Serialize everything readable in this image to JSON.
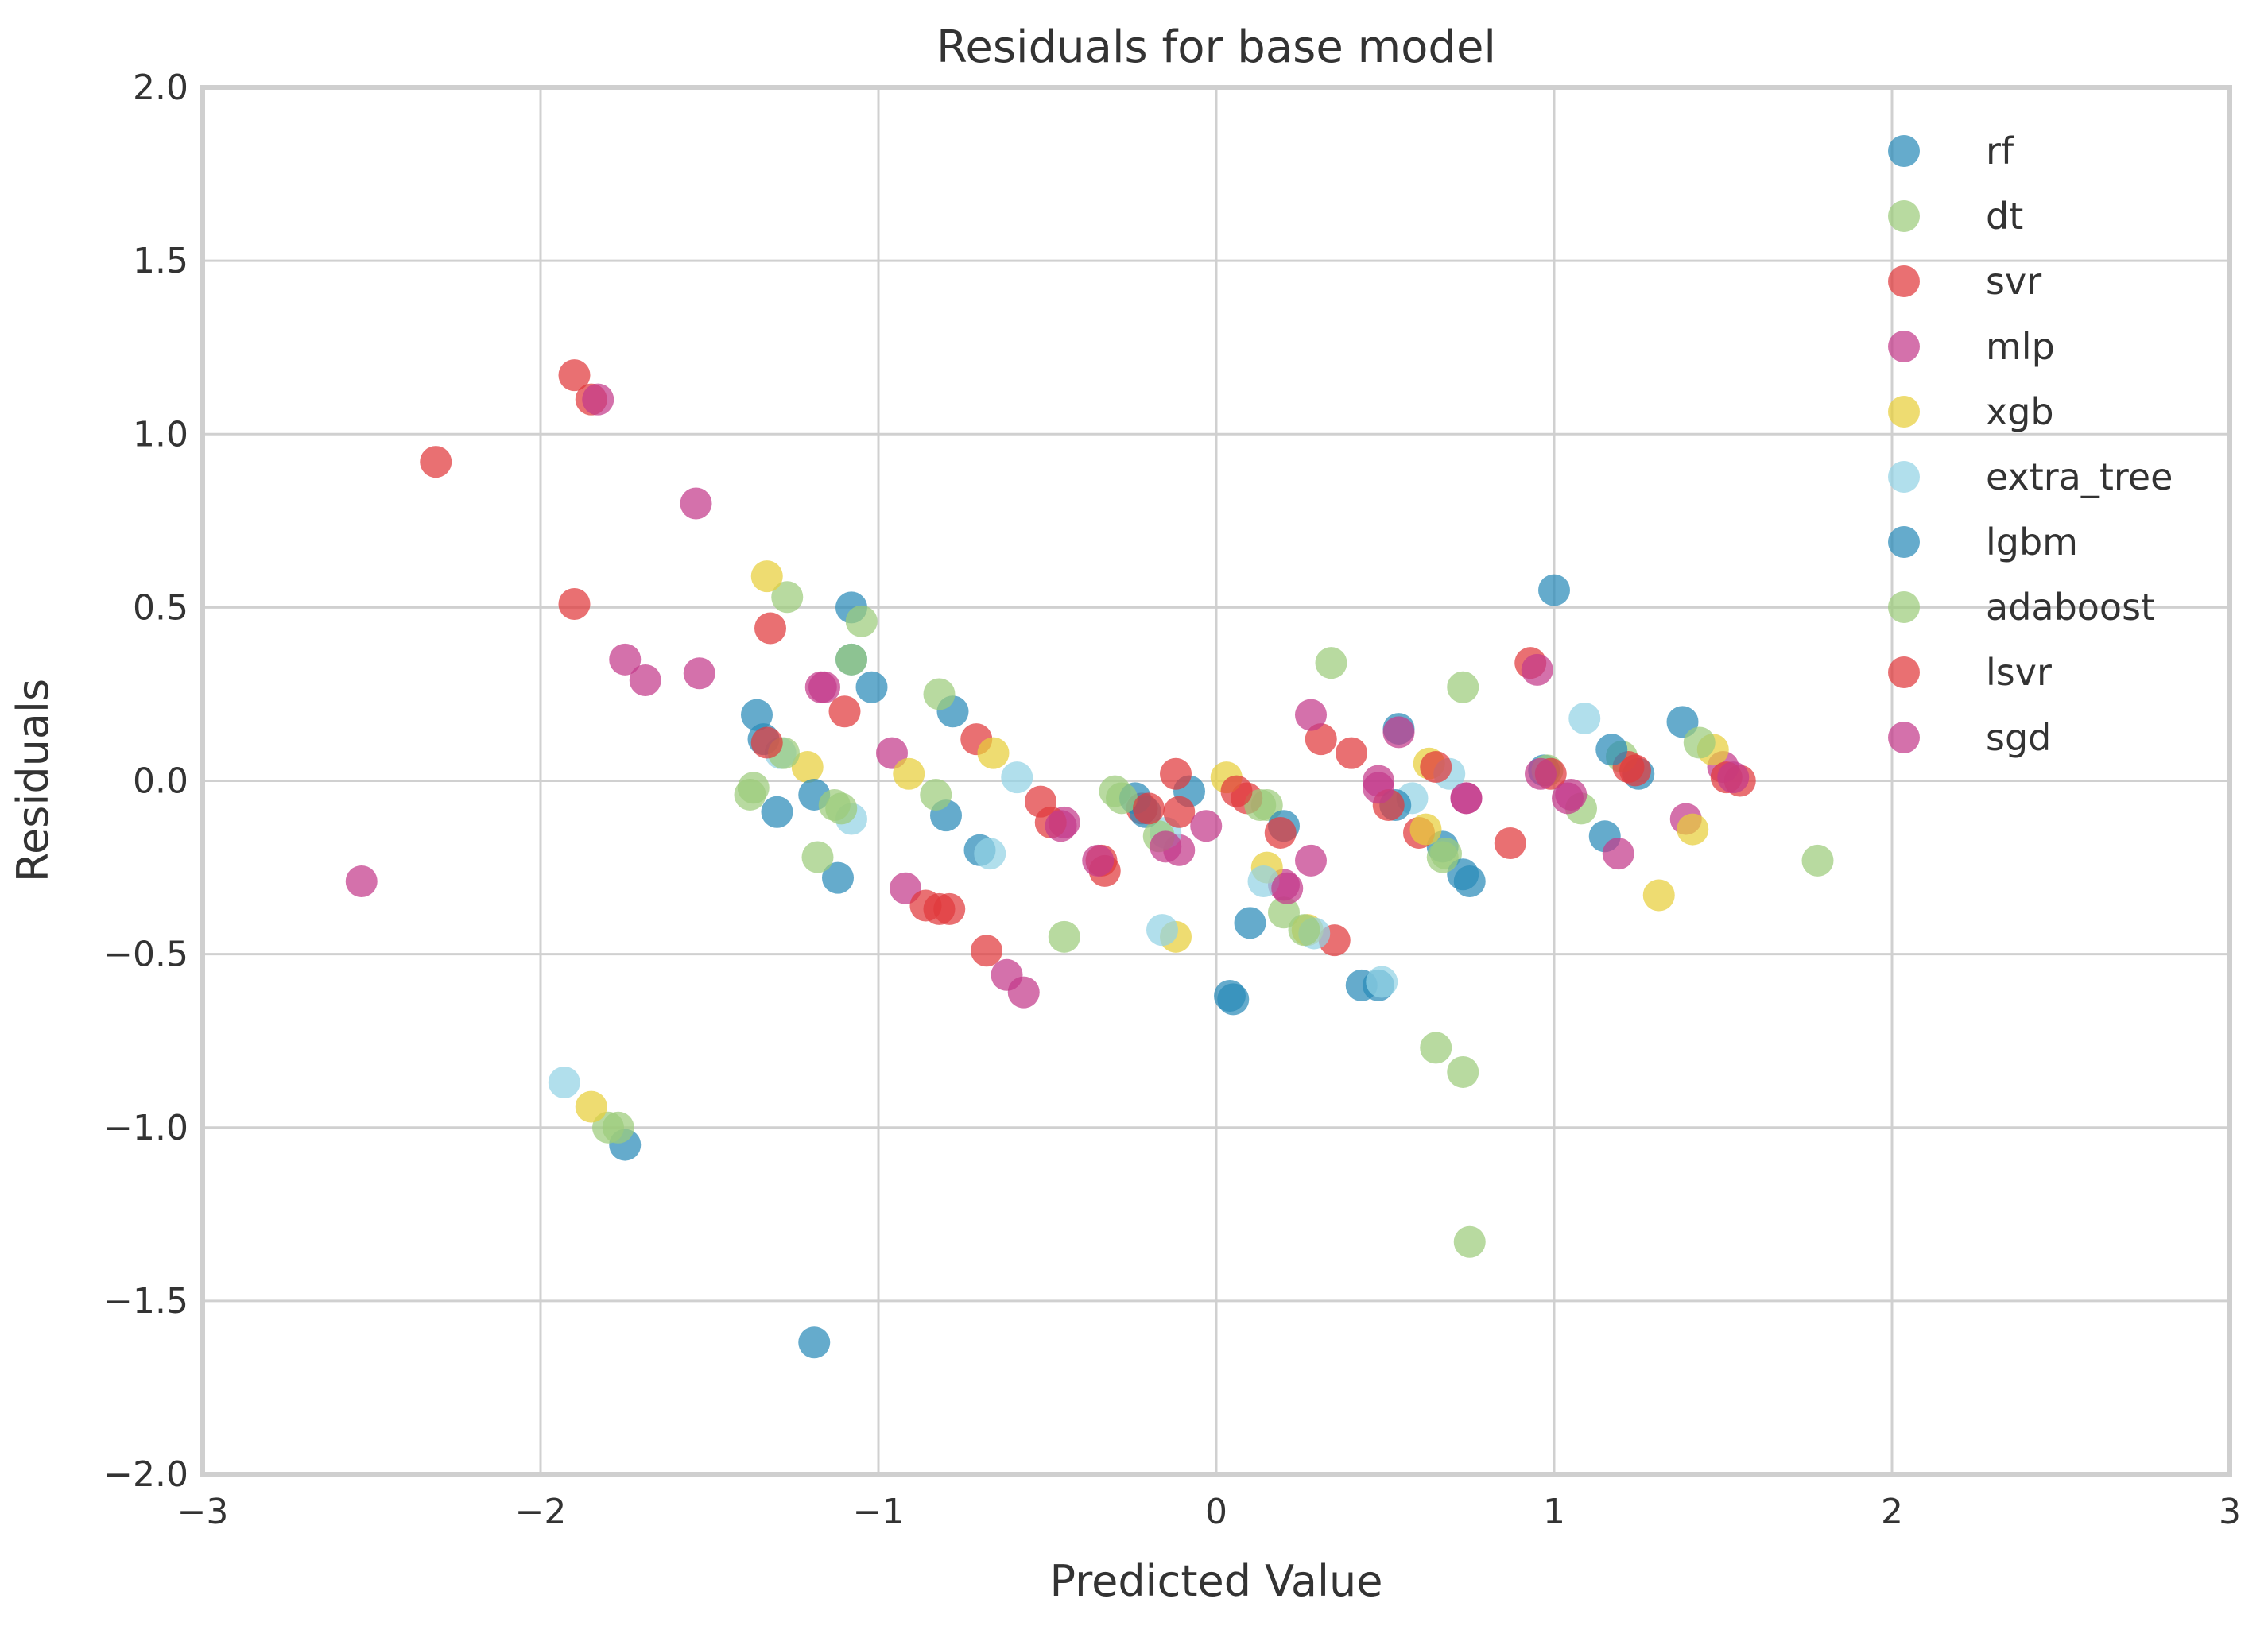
{
  "chart_data": {
    "type": "scatter",
    "title": "Residuals for base model",
    "xlabel": "Predicted Value",
    "ylabel": "Residuals",
    "xlim": [
      -3,
      3
    ],
    "ylim": [
      -2.0,
      2.0
    ],
    "xticks": [
      -3,
      -2,
      -1,
      0,
      1,
      2,
      3
    ],
    "xtick_labels": [
      "−3",
      "−2",
      "−1",
      "0",
      "1",
      "2",
      "3"
    ],
    "yticks": [
      2.0,
      1.5,
      1.0,
      0.5,
      0.0,
      -0.5,
      -1.0,
      -1.5,
      -2.0
    ],
    "ytick_labels": [
      "2.0",
      "1.5",
      "1.0",
      "0.5",
      "0.0",
      "−0.5",
      "−1.0",
      "−1.5",
      "−2.0"
    ],
    "grid": true,
    "legend_position": "top-right",
    "series": [
      {
        "name": "rf",
        "color": "#2a8ab8",
        "points": [
          [
            -1.08,
            0.5
          ],
          [
            -1.02,
            0.27
          ],
          [
            -1.36,
            0.19
          ],
          [
            -0.78,
            0.2
          ],
          [
            -0.8,
            -0.1
          ],
          [
            -0.7,
            -0.2
          ],
          [
            -1.3,
            -0.09
          ],
          [
            -1.12,
            -0.28
          ],
          [
            -1.19,
            -1.62
          ],
          [
            -1.75,
            -1.05
          ],
          [
            0.04,
            -0.62
          ],
          [
            0.1,
            -0.41
          ],
          [
            0.43,
            -0.59
          ],
          [
            0.48,
            -0.59
          ],
          [
            0.75,
            -0.29
          ],
          [
            0.67,
            -0.19
          ],
          [
            1.0,
            0.55
          ],
          [
            1.25,
            0.02
          ],
          [
            1.15,
            -0.16
          ],
          [
            1.38,
            0.17
          ],
          [
            0.54,
            0.15
          ],
          [
            -0.08,
            -0.03
          ]
        ]
      },
      {
        "name": "dt",
        "color": "#9ccc7c",
        "points": [
          [
            -1.27,
            0.53
          ],
          [
            -1.05,
            0.46
          ],
          [
            -0.82,
            0.25
          ],
          [
            -1.37,
            -0.02
          ],
          [
            -1.18,
            -0.22
          ],
          [
            -0.83,
            -0.04
          ],
          [
            -0.45,
            -0.45
          ],
          [
            -0.3,
            -0.03
          ],
          [
            0.2,
            -0.38
          ],
          [
            0.34,
            0.34
          ],
          [
            0.73,
            0.27
          ],
          [
            0.65,
            -0.77
          ],
          [
            0.73,
            -0.84
          ],
          [
            0.75,
            -1.33
          ],
          [
            1.08,
            -0.08
          ],
          [
            1.78,
            -0.23
          ],
          [
            1.2,
            0.07
          ],
          [
            -1.8,
            -1.0
          ],
          [
            0.15,
            -0.07
          ],
          [
            0.68,
            -0.21
          ]
        ]
      },
      {
        "name": "svr",
        "color": "#e0393c",
        "points": [
          [
            -2.31,
            0.92
          ],
          [
            -1.9,
            1.17
          ],
          [
            -1.85,
            1.1
          ],
          [
            -1.9,
            0.51
          ],
          [
            -1.32,
            0.44
          ],
          [
            -1.1,
            0.2
          ],
          [
            -0.71,
            0.12
          ],
          [
            -0.52,
            -0.06
          ],
          [
            -0.68,
            -0.49
          ],
          [
            -0.82,
            -0.37
          ],
          [
            -0.33,
            -0.26
          ],
          [
            -0.12,
            0.02
          ],
          [
            0.09,
            -0.05
          ],
          [
            0.31,
            0.12
          ],
          [
            0.4,
            0.08
          ],
          [
            0.6,
            -0.15
          ],
          [
            0.87,
            -0.18
          ],
          [
            0.93,
            0.34
          ],
          [
            1.22,
            0.04
          ],
          [
            1.55,
            0.0
          ],
          [
            0.35,
            -0.46
          ],
          [
            -0.22,
            -0.08
          ]
        ]
      },
      {
        "name": "mlp",
        "color": "#c43a8a",
        "points": [
          [
            -1.54,
            0.8
          ],
          [
            -1.75,
            0.35
          ],
          [
            -1.17,
            0.27
          ],
          [
            -0.96,
            0.08
          ],
          [
            -0.92,
            -0.31
          ],
          [
            -0.62,
            -0.56
          ],
          [
            -0.57,
            -0.61
          ],
          [
            -0.45,
            -0.12
          ],
          [
            -0.11,
            -0.2
          ],
          [
            0.28,
            0.19
          ],
          [
            0.28,
            -0.23
          ],
          [
            0.48,
            0.0
          ],
          [
            0.54,
            0.14
          ],
          [
            0.74,
            -0.05
          ],
          [
            0.95,
            0.32
          ],
          [
            1.05,
            -0.04
          ],
          [
            1.39,
            -0.11
          ],
          [
            1.5,
            0.04
          ],
          [
            1.19,
            -0.21
          ],
          [
            0.2,
            -0.3
          ]
        ]
      },
      {
        "name": "xgb",
        "color": "#e8cf3a",
        "points": [
          [
            -1.33,
            0.59
          ],
          [
            -1.21,
            0.04
          ],
          [
            -0.91,
            0.02
          ],
          [
            -0.66,
            0.08
          ],
          [
            -0.12,
            -0.45
          ],
          [
            0.03,
            0.01
          ],
          [
            0.15,
            -0.25
          ],
          [
            0.27,
            -0.43
          ],
          [
            0.63,
            0.05
          ],
          [
            1.31,
            -0.33
          ],
          [
            1.41,
            -0.14
          ],
          [
            1.47,
            0.09
          ],
          [
            -1.85,
            -0.94
          ],
          [
            0.62,
            -0.14
          ]
        ]
      },
      {
        "name": "extra_tree",
        "color": "#93d3e4",
        "points": [
          [
            -1.93,
            -0.87
          ],
          [
            -0.59,
            0.01
          ],
          [
            -0.67,
            -0.21
          ],
          [
            -1.29,
            0.08
          ],
          [
            -1.08,
            -0.11
          ],
          [
            -0.16,
            -0.43
          ],
          [
            -0.15,
            -0.15
          ],
          [
            0.29,
            -0.44
          ],
          [
            1.09,
            0.18
          ],
          [
            0.69,
            0.02
          ],
          [
            0.49,
            -0.58
          ],
          [
            0.14,
            -0.29
          ],
          [
            0.58,
            -0.05
          ]
        ]
      },
      {
        "name": "lgbm",
        "color": "#2a8ab8",
        "points": [
          [
            -1.34,
            0.12
          ],
          [
            -1.19,
            -0.04
          ],
          [
            -1.08,
            0.35
          ],
          [
            -0.24,
            -0.05
          ],
          [
            0.05,
            -0.63
          ],
          [
            0.2,
            -0.13
          ],
          [
            0.53,
            -0.07
          ],
          [
            0.73,
            -0.27
          ],
          [
            0.97,
            0.03
          ],
          [
            1.17,
            0.09
          ],
          [
            -0.21,
            -0.09
          ]
        ]
      },
      {
        "name": "adaboost",
        "color": "#9ccc7c",
        "points": [
          [
            -1.38,
            -0.04
          ],
          [
            -1.28,
            0.08
          ],
          [
            -1.11,
            -0.08
          ],
          [
            -1.08,
            0.35
          ],
          [
            -0.17,
            -0.16
          ],
          [
            0.26,
            -0.43
          ],
          [
            0.67,
            -0.22
          ],
          [
            0.98,
            0.03
          ],
          [
            1.43,
            0.11
          ],
          [
            0.13,
            -0.07
          ],
          [
            -1.77,
            -1.0
          ],
          [
            -1.13,
            -0.07
          ],
          [
            -0.28,
            -0.05
          ]
        ]
      },
      {
        "name": "lsvr",
        "color": "#e0393c",
        "points": [
          [
            -1.33,
            0.11
          ],
          [
            -0.49,
            -0.12
          ],
          [
            -0.34,
            -0.23
          ],
          [
            -0.11,
            -0.09
          ],
          [
            0.06,
            -0.03
          ],
          [
            0.19,
            -0.15
          ],
          [
            0.65,
            0.04
          ],
          [
            0.99,
            0.02
          ],
          [
            1.51,
            0.01
          ],
          [
            -0.79,
            -0.37
          ],
          [
            -0.2,
            -0.08
          ],
          [
            -0.86,
            -0.36
          ],
          [
            0.51,
            -0.07
          ],
          [
            1.24,
            0.03
          ]
        ]
      },
      {
        "name": "sgd",
        "color": "#c43a8a",
        "points": [
          [
            -2.53,
            -0.29
          ],
          [
            -1.69,
            0.29
          ],
          [
            -1.53,
            0.31
          ],
          [
            -1.83,
            1.1
          ],
          [
            -0.46,
            -0.13
          ],
          [
            -0.15,
            -0.19
          ],
          [
            -0.03,
            -0.13
          ],
          [
            0.21,
            -0.31
          ],
          [
            0.48,
            -0.02
          ],
          [
            0.74,
            -0.05
          ],
          [
            1.04,
            -0.05
          ],
          [
            1.53,
            0.01
          ],
          [
            -0.35,
            -0.23
          ],
          [
            0.96,
            0.02
          ],
          [
            -1.16,
            0.27
          ]
        ]
      }
    ]
  }
}
